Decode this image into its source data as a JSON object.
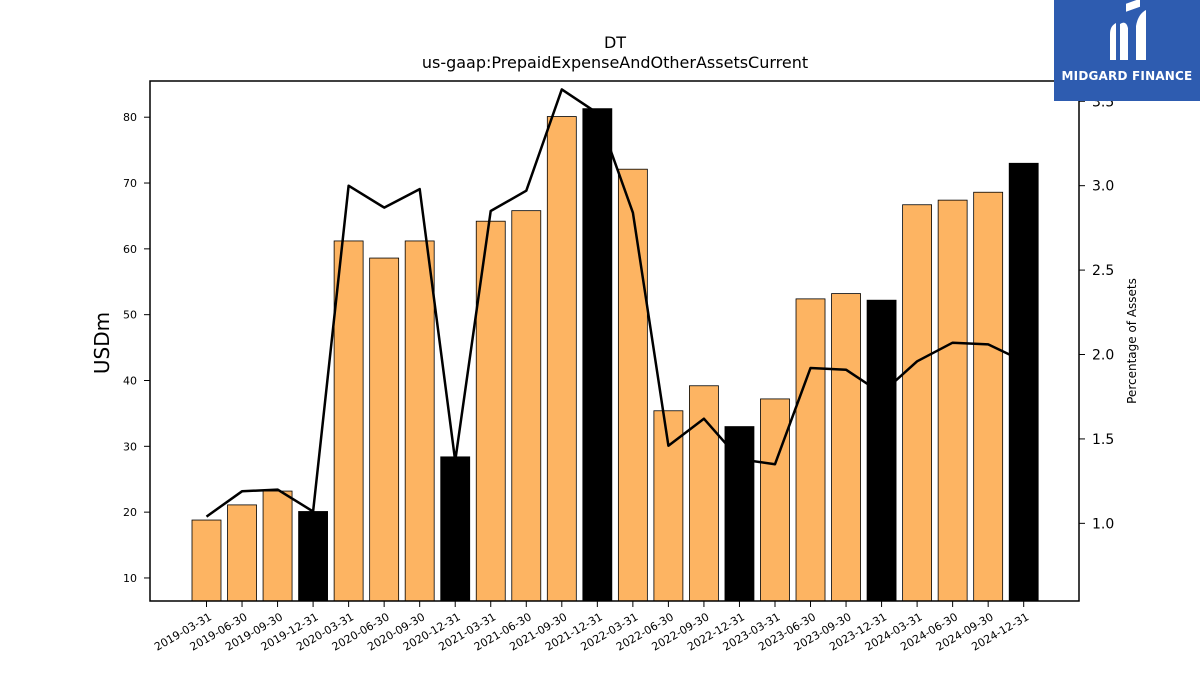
{
  "chart_data": {
    "type": "bar",
    "title": "DT",
    "subtitle": "us-gaap:PrepaidExpenseAndOtherAssetsCurrent",
    "ylabel": "USDm",
    "y2label": "Percentage of Assets",
    "ylim": [
      6.5,
      85.5
    ],
    "y2lim": [
      0.54,
      3.62
    ],
    "yticks": [
      10,
      20,
      30,
      40,
      50,
      60,
      70,
      80
    ],
    "y2ticks": [
      1.0,
      1.5,
      2.0,
      2.5,
      3.0,
      3.5
    ],
    "categories": [
      "2019-03-31",
      "2019-06-30",
      "2019-09-30",
      "2019-12-31",
      "2020-03-31",
      "2020-06-30",
      "2020-09-30",
      "2020-12-31",
      "2021-03-31",
      "2021-06-30",
      "2021-09-30",
      "2021-12-31",
      "2022-03-31",
      "2022-06-30",
      "2022-09-30",
      "2022-12-31",
      "2023-03-31",
      "2023-06-30",
      "2023-09-30",
      "2023-12-31",
      "2024-03-31",
      "2024-06-30",
      "2024-09-30",
      "2024-12-31"
    ],
    "series": [
      {
        "type": "bar",
        "values": [
          18.8,
          21.1,
          23.2,
          20.1,
          61.2,
          58.6,
          61.2,
          28.4,
          64.2,
          65.8,
          80.1,
          81.3,
          72.1,
          35.4,
          39.2,
          33.0,
          37.2,
          52.4,
          53.2,
          52.2,
          66.7,
          67.4,
          68.6,
          73.0
        ],
        "colors": [
          "#fdb462",
          "#fdb462",
          "#fdb462",
          "#000000",
          "#fdb462",
          "#fdb462",
          "#fdb462",
          "#000000",
          "#fdb462",
          "#fdb462",
          "#fdb462",
          "#000000",
          "#fdb462",
          "#fdb462",
          "#fdb462",
          "#000000",
          "#fdb462",
          "#fdb462",
          "#fdb462",
          "#000000",
          "#fdb462",
          "#fdb462",
          "#fdb462",
          "#000000"
        ]
      },
      {
        "type": "line",
        "axis": "right",
        "color": "#000000",
        "values": [
          1.04,
          1.19,
          1.2,
          1.07,
          3.0,
          2.87,
          2.98,
          1.37,
          2.85,
          2.97,
          3.57,
          3.43,
          2.84,
          1.46,
          1.62,
          1.38,
          1.35,
          1.92,
          1.91,
          1.77,
          1.96,
          2.07,
          2.06,
          1.96
        ]
      }
    ]
  },
  "logo": {
    "text": "MIDGARD FINANCE",
    "color": "#2e5cb0"
  }
}
